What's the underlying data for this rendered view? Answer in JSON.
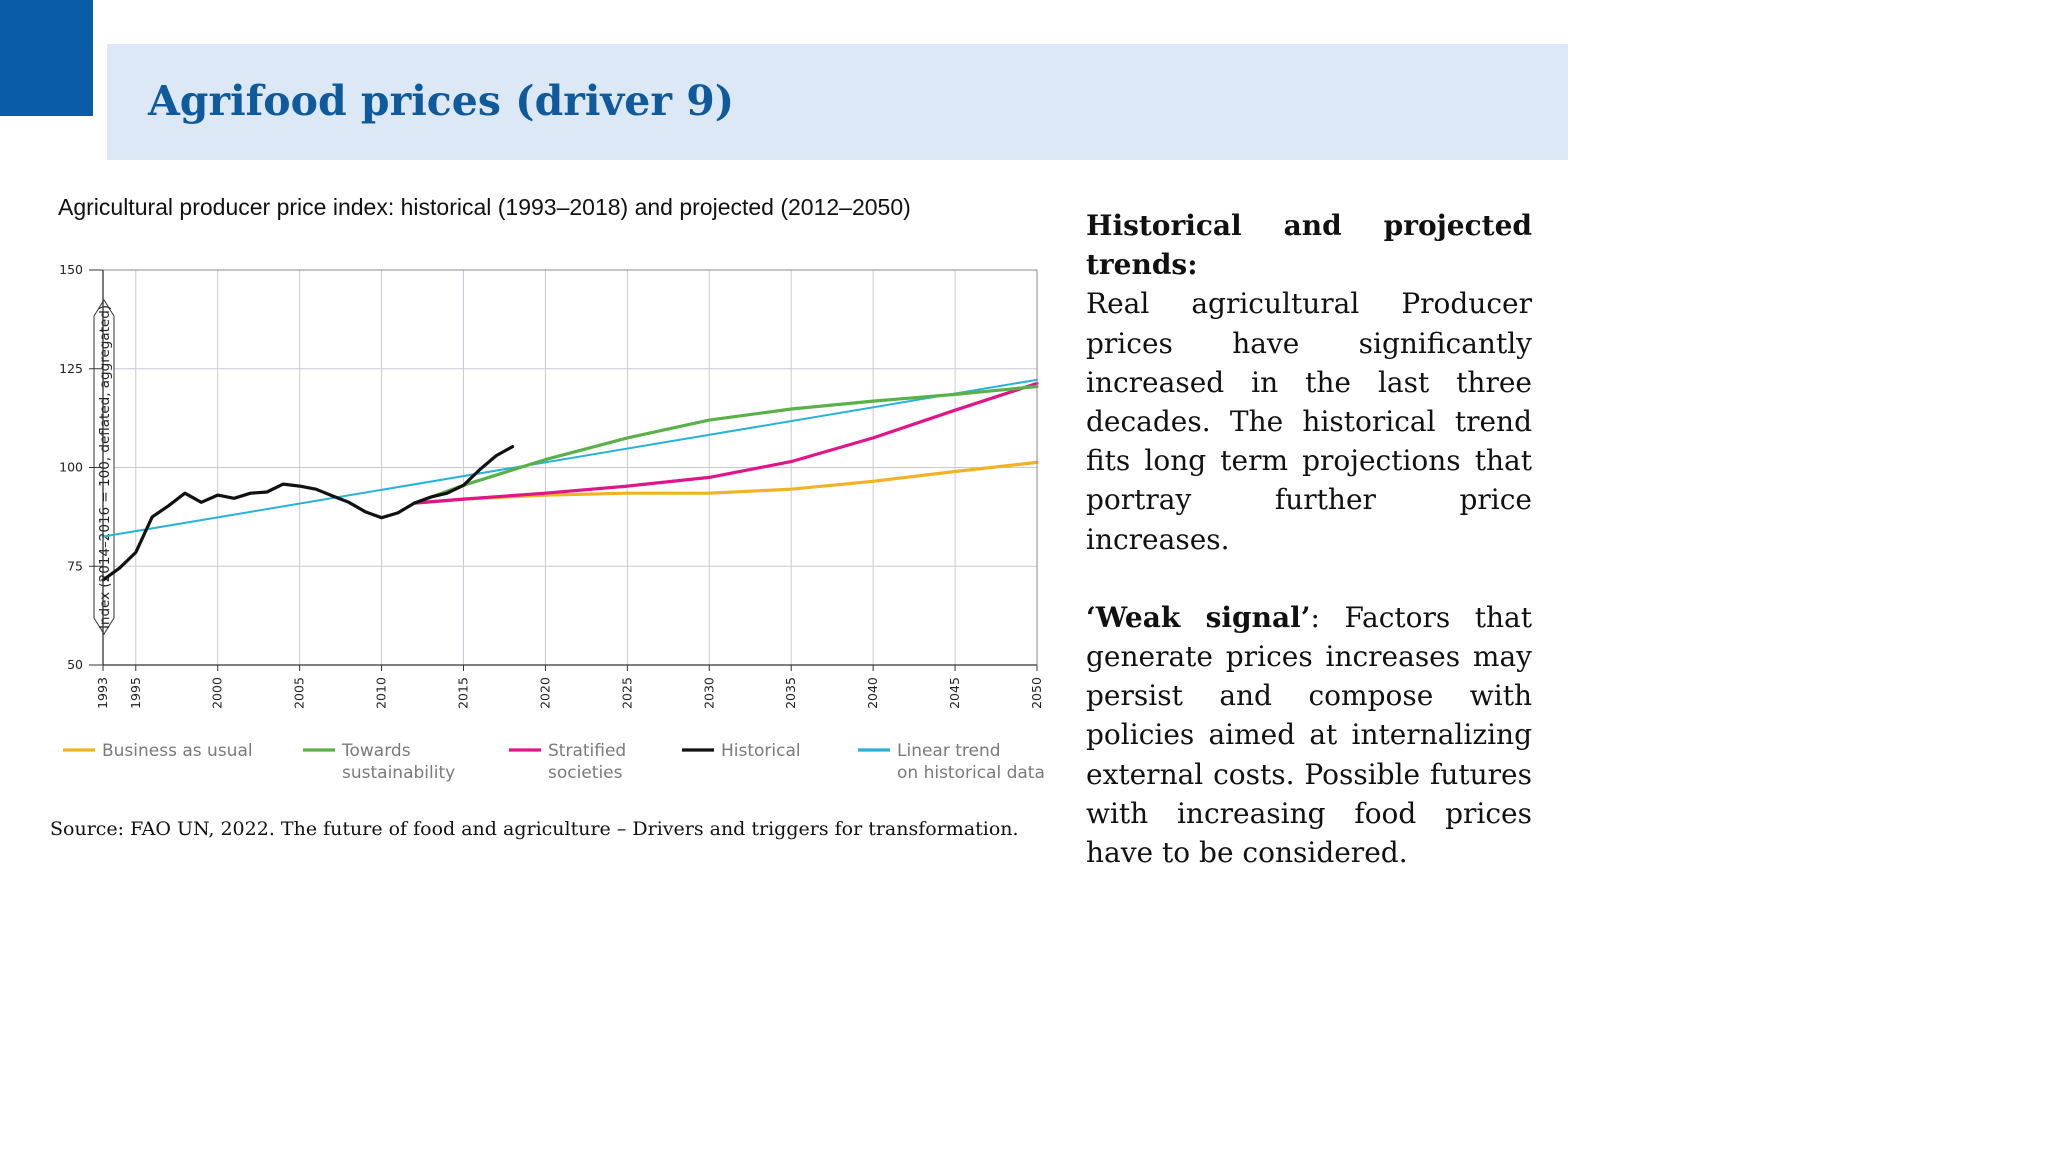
{
  "slide": {
    "title": "Agrifood prices (driver 9)",
    "source": "Source: FAO UN, 2022. The future of food and agriculture – Drivers and triggers for transformation."
  },
  "side_text": {
    "heading": "Historical and projected trends:",
    "paragraph1": "Real agricultural Producer prices have significantly increased in the last three decades. The historical trend fits long term projections that portray further price increases.",
    "weak_signal_label": "‘Weak signal’",
    "paragraph2_rest": ": Factors that generate prices increases may persist and compose with policies aimed at internalizing external costs. Possible futures with increasing food prices have to be considered."
  },
  "chart_data": {
    "type": "line",
    "title": "Agricultural producer price index: historical (1993–2018) and projected (2012–2050)",
    "ylabel": "Index (2014–2016 = 100, deflated, aggregated)",
    "xlabel": "",
    "xlim": [
      1993,
      2050
    ],
    "ylim": [
      50,
      150
    ],
    "x_ticks": [
      "1993",
      "1995",
      "2000",
      "2005",
      "2010",
      "2015",
      "2020",
      "2025",
      "2030",
      "2035",
      "2040",
      "2045",
      "2050"
    ],
    "y_ticks": [
      "50",
      "75",
      "100",
      "125",
      "150"
    ],
    "grid": true,
    "legend_position": "bottom",
    "series": [
      {
        "name": "Business as usual",
        "color": "#f0b323",
        "legend_lines": [
          "Business as usual"
        ],
        "x": [
          2012,
          2015,
          2020,
          2025,
          2030,
          2035,
          2040,
          2045,
          2050
        ],
        "y": [
          91,
          92,
          93,
          93.5,
          93.5,
          94.5,
          96.5,
          99,
          101.3
        ]
      },
      {
        "name": "Towards sustainability",
        "color": "#5ab14a",
        "legend_lines": [
          "Towards",
          "sustainability"
        ],
        "x": [
          2012,
          2015,
          2020,
          2025,
          2030,
          2035,
          2040,
          2045,
          2050
        ],
        "y": [
          91,
          95.5,
          102,
          107.5,
          112,
          114.8,
          116.8,
          118.5,
          120.5
        ]
      },
      {
        "name": "Stratified societies",
        "color": "#e0158a",
        "legend_lines": [
          "Stratified",
          "societies"
        ],
        "x": [
          2012,
          2015,
          2020,
          2025,
          2030,
          2035,
          2040,
          2045,
          2050
        ],
        "y": [
          91,
          92,
          93.5,
          95.3,
          97.5,
          101.5,
          107.5,
          114.5,
          121.3
        ]
      },
      {
        "name": "Historical",
        "color": "#111111",
        "legend_lines": [
          "Historical"
        ],
        "x": [
          1993,
          1994,
          1995,
          1996,
          1997,
          1998,
          1999,
          2000,
          2001,
          2002,
          2003,
          2004,
          2005,
          2006,
          2007,
          2008,
          2009,
          2010,
          2011,
          2012,
          2013,
          2014,
          2015,
          2016,
          2017,
          2018
        ],
        "y": [
          71.5,
          74.5,
          78.5,
          87.5,
          90.3,
          93.5,
          91.2,
          93,
          92.2,
          93.5,
          93.8,
          95.8,
          95.3,
          94.5,
          92.8,
          91.2,
          88.8,
          87.3,
          88.5,
          91,
          92.5,
          93.5,
          95.5,
          99.5,
          103,
          105.3
        ]
      },
      {
        "name": "Linear trend on historical data",
        "color": "#27b3d9",
        "legend_lines": [
          "Linear trend",
          "on historical data"
        ],
        "x": [
          1993,
          2050
        ],
        "y": [
          82.5,
          122.2
        ]
      }
    ]
  }
}
